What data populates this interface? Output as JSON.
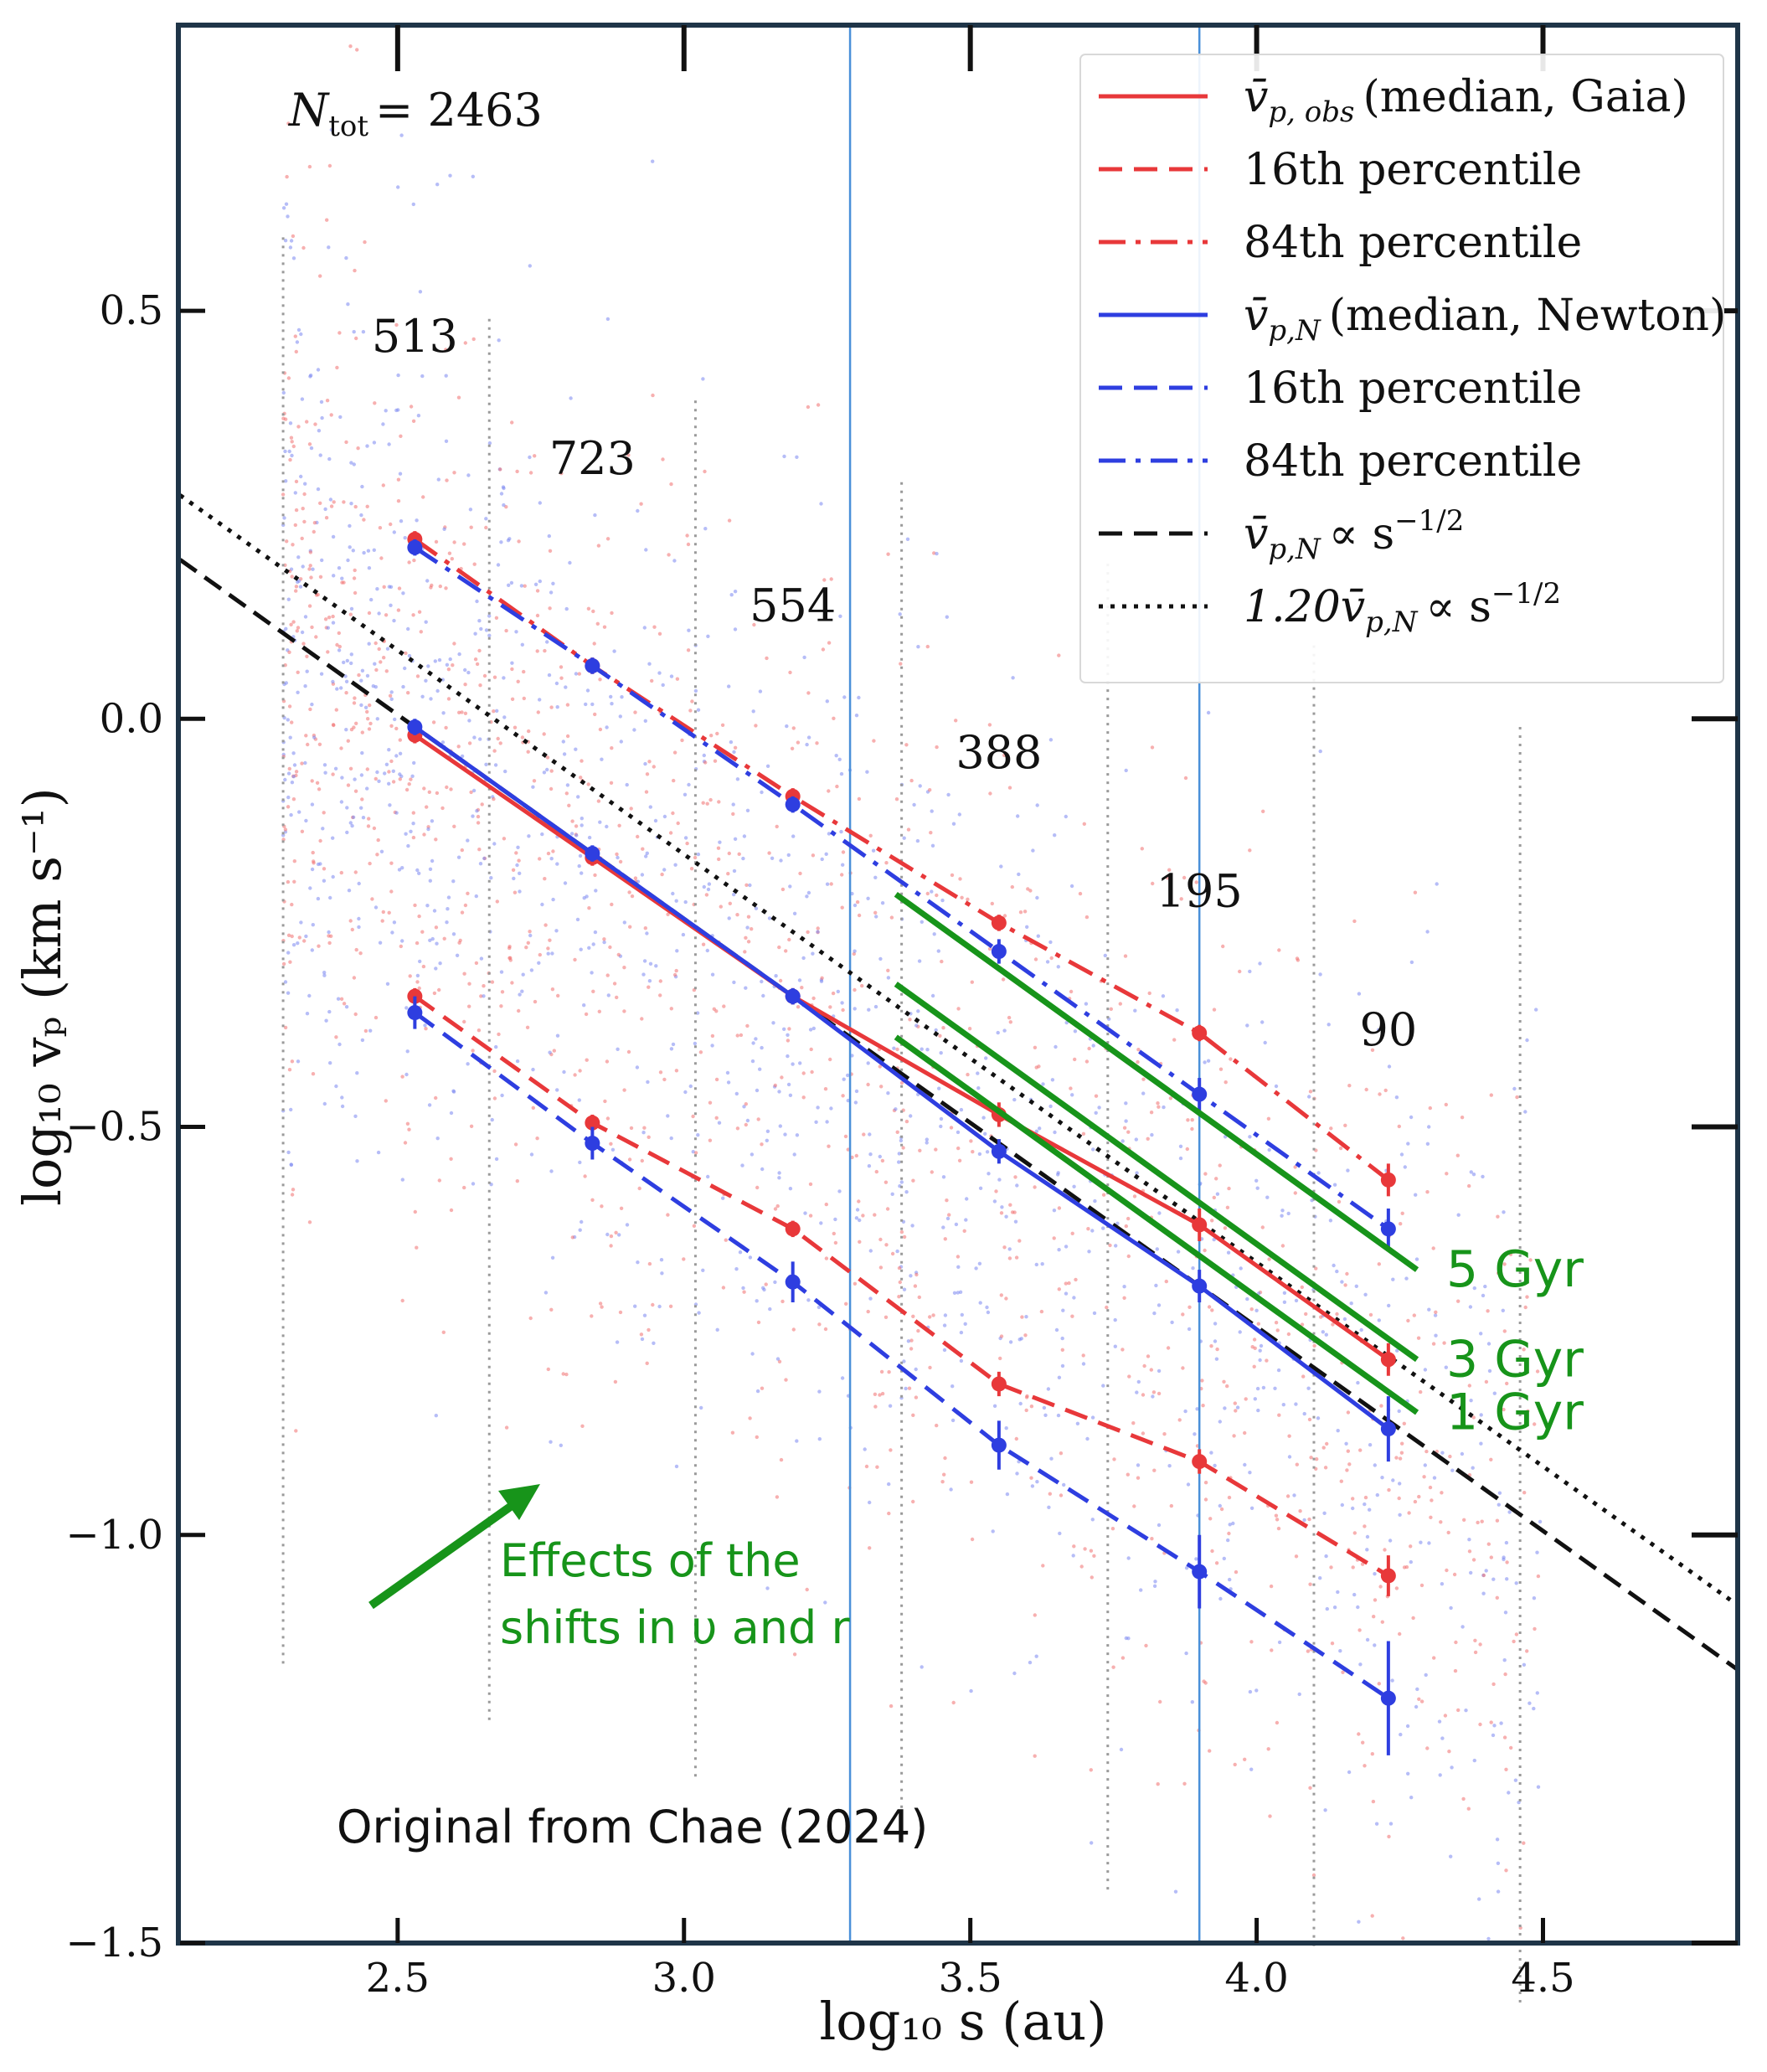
{
  "chart_data": {
    "type": "line",
    "xlabel": "log₁₀ s (au)",
    "ylabel": "log₁₀ vₚ (km s⁻¹)",
    "xlim": [
      2.12,
      4.84
    ],
    "ylim": [
      -1.5,
      0.85
    ],
    "xticks": [
      {
        "value": 2.5,
        "label": "2.5"
      },
      {
        "value": 3.0,
        "label": "3.0"
      },
      {
        "value": 3.5,
        "label": "3.5"
      },
      {
        "value": 4.0,
        "label": "4.0"
      },
      {
        "value": 4.5,
        "label": "4.5"
      }
    ],
    "yticks": [
      {
        "value": 0.5,
        "label": "0.5"
      },
      {
        "value": 0.0,
        "label": "0.0"
      },
      {
        "value": -0.5,
        "label": "−0.5"
      },
      {
        "value": -1.0,
        "label": "−1.0"
      },
      {
        "value": -1.5,
        "label": "−1.5"
      }
    ],
    "ntot_label": "N",
    "ntot_sub": "tot",
    "ntot_value": "= 2463",
    "bin_edges": [
      2.3,
      2.66,
      3.02,
      3.38,
      3.74,
      4.1,
      4.46
    ],
    "bin_counts": [
      {
        "x": 2.53,
        "y": 0.45,
        "label": "513"
      },
      {
        "x": 2.84,
        "y": 0.3,
        "label": "723"
      },
      {
        "x": 3.19,
        "y": 0.12,
        "label": "554"
      },
      {
        "x": 3.55,
        "y": -0.06,
        "label": "388"
      },
      {
        "x": 3.9,
        "y": -0.23,
        "label": "195"
      },
      {
        "x": 4.23,
        "y": -0.4,
        "label": "90"
      }
    ],
    "x": [
      2.53,
      2.84,
      3.19,
      3.55,
      3.9,
      4.23
    ],
    "series": [
      {
        "name": "v̄p,obs (median, Gaia)",
        "color": "#e8383a",
        "style": "solid",
        "values": [
          -0.02,
          -0.17,
          -0.34,
          -0.485,
          -0.62,
          -0.785
        ],
        "errors": [
          0.01,
          0.01,
          0.01,
          0.015,
          0.02,
          0.02
        ]
      },
      {
        "name": "16th percentile (Gaia)",
        "color": "#e8383a",
        "style": "dashed",
        "values": [
          -0.34,
          -0.495,
          -0.625,
          -0.815,
          -0.91,
          -1.05
        ],
        "errors": [
          0.01,
          0.01,
          0.01,
          0.015,
          0.015,
          0.025
        ]
      },
      {
        "name": "84th percentile (Gaia)",
        "color": "#e8383a",
        "style": "dashdot",
        "values": [
          0.22,
          0.065,
          -0.095,
          -0.25,
          -0.385,
          -0.565
        ],
        "errors": [
          0.01,
          0.01,
          0.01,
          0.01,
          0.01,
          0.02
        ]
      },
      {
        "name": "v̄p,N (median, Newton)",
        "color": "#2e3ee0",
        "style": "solid",
        "values": [
          -0.01,
          -0.165,
          -0.34,
          -0.53,
          -0.695,
          -0.87
        ],
        "errors": [
          0.01,
          0.01,
          0.01,
          0.015,
          0.02,
          0.04
        ]
      },
      {
        "name": "16th percentile (Newton)",
        "color": "#2e3ee0",
        "style": "dashed",
        "values": [
          -0.36,
          -0.52,
          -0.69,
          -0.89,
          -1.045,
          -1.2
        ],
        "errors": [
          0.02,
          0.02,
          0.025,
          0.03,
          0.045,
          0.07
        ]
      },
      {
        "name": "84th percentile (Newton)",
        "color": "#2e3ee0",
        "style": "dashdot",
        "values": [
          0.21,
          0.065,
          -0.105,
          -0.285,
          -0.46,
          -0.625
        ],
        "errors": [
          0.01,
          0.01,
          0.01,
          0.015,
          0.02,
          0.025
        ]
      }
    ],
    "reference_lines": [
      {
        "name": "v̄p,N ∝ s^-1/2",
        "style": "dashed",
        "color": "#111111",
        "x": [
          2.12,
          4.84
        ],
        "y": [
          0.195,
          -1.165
        ]
      },
      {
        "name": "1.20 v̄p,N ∝ s^-1/2",
        "style": "dotted",
        "color": "#111111",
        "x": [
          2.12,
          4.84
        ],
        "y": [
          0.274,
          -1.086
        ]
      }
    ],
    "vertical_lines": [
      3.29,
      3.9
    ],
    "age_lines": [
      {
        "label": "5 Gyr",
        "x": [
          3.37,
          4.28
        ],
        "y": [
          -0.215,
          -0.675
        ]
      },
      {
        "label": "3 Gyr",
        "x": [
          3.37,
          4.28
        ],
        "y": [
          -0.325,
          -0.785
        ]
      },
      {
        "label": "1 Gyr",
        "x": [
          3.37,
          4.28
        ],
        "y": [
          -0.39,
          -0.85
        ]
      }
    ],
    "annotations": {
      "shifts_line1": "Effects of the",
      "shifts_line2": "shifts in υ and r",
      "source": "Original from  Chae (2024)"
    },
    "legend": {
      "position": "top-right",
      "entries": [
        {
          "main": "v̄",
          "sub": "p, obs",
          "text": "(median, Gaia)",
          "color": "#e8383a",
          "style": "solid"
        },
        {
          "main": "16th percentile",
          "sub": "",
          "text": "",
          "color": "#e8383a",
          "style": "dashed"
        },
        {
          "main": "84th percentile",
          "sub": "",
          "text": "",
          "color": "#e8383a",
          "style": "dashdot"
        },
        {
          "main": "v̄",
          "sub": "p,N",
          "text": "(median, Newton)",
          "color": "#2e3ee0",
          "style": "solid"
        },
        {
          "main": "16th percentile",
          "sub": "",
          "text": "",
          "color": "#2e3ee0",
          "style": "dashed"
        },
        {
          "main": "84th percentile",
          "sub": "",
          "text": "",
          "color": "#2e3ee0",
          "style": "dashdot"
        },
        {
          "main": "v̄",
          "sub": "p,N",
          "text": "∝ s",
          "sup": "−1/2",
          "color": "#111111",
          "style": "dashed"
        },
        {
          "main": "1.20v̄",
          "sub": "p,N",
          "text": "∝ s",
          "sup": "−1/2",
          "color": "#111111",
          "style": "dotted"
        }
      ]
    }
  }
}
